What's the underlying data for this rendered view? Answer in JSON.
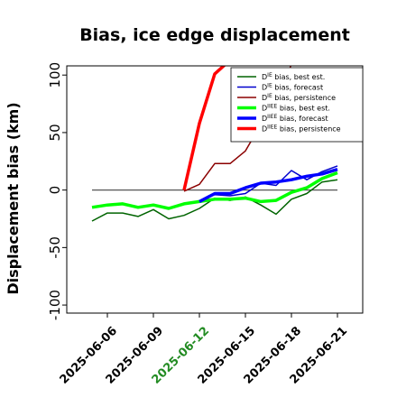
{
  "chart_data": {
    "type": "line",
    "title": "Bias, ice edge displacement",
    "ylabel": "Displacement bias (km)",
    "xlabel": "",
    "ylim": [
      -107,
      108
    ],
    "yticks": [
      -100,
      -50,
      0,
      50,
      100
    ],
    "xticks": [
      "2025-06-06",
      "2025-06-09",
      "2025-06-12",
      "2025-06-15",
      "2025-06-18",
      "2025-06-21"
    ],
    "highlight_tick": "2025-06-12",
    "highlight_color": "#228B22",
    "reference_line": 0,
    "x": [
      "2025-06-05",
      "2025-06-06",
      "2025-06-07",
      "2025-06-08",
      "2025-06-09",
      "2025-06-10",
      "2025-06-11",
      "2025-06-12",
      "2025-06-13",
      "2025-06-14",
      "2025-06-15",
      "2025-06-16",
      "2025-06-17",
      "2025-06-18",
      "2025-06-19",
      "2025-06-20",
      "2025-06-21"
    ],
    "legend_position": "top-right",
    "series": [
      {
        "name": "D bias, best est.",
        "sup": "IE",
        "color": "#006400",
        "width": 1.5,
        "values": [
          -27,
          -20,
          -20,
          -23,
          -17,
          -25,
          -22,
          -16,
          -7,
          -9,
          -6,
          -13,
          -21,
          -8,
          -3,
          7,
          9
        ]
      },
      {
        "name": "D bias, forecast",
        "sup": "IE",
        "color": "#0000CD",
        "width": 1.5,
        "values": [
          null,
          null,
          null,
          null,
          null,
          null,
          null,
          -10,
          -4,
          -5,
          -3,
          6,
          4,
          17,
          9,
          16,
          21
        ]
      },
      {
        "name": "D bias, persistence",
        "sup": "IE",
        "color": "#8B0000",
        "width": 1.5,
        "values": [
          null,
          null,
          null,
          null,
          null,
          null,
          -1,
          5,
          23,
          23,
          34,
          57,
          68,
          110,
          null,
          null,
          null
        ]
      },
      {
        "name": "D bias, best est.",
        "sup": "IIEE",
        "color": "#00FF00",
        "width": 3.5,
        "values": [
          -15,
          -13,
          -12,
          -15,
          -13,
          -16,
          -12,
          -10,
          -8,
          -8,
          -7,
          -10,
          -9,
          -2,
          2,
          10,
          15
        ]
      },
      {
        "name": "D bias, forecast",
        "sup": "IIEE",
        "color": "#0000FF",
        "width": 3.5,
        "values": [
          null,
          null,
          null,
          null,
          null,
          null,
          null,
          -10,
          -3,
          -3,
          2,
          6,
          7,
          9,
          12,
          14,
          18
        ]
      },
      {
        "name": "D bias, persistence",
        "sup": "IIEE",
        "color": "#FF0000",
        "width": 3.5,
        "values": [
          null,
          null,
          null,
          null,
          null,
          null,
          0,
          58,
          101,
          113,
          null,
          null,
          null,
          null,
          null,
          null,
          null
        ]
      }
    ]
  }
}
